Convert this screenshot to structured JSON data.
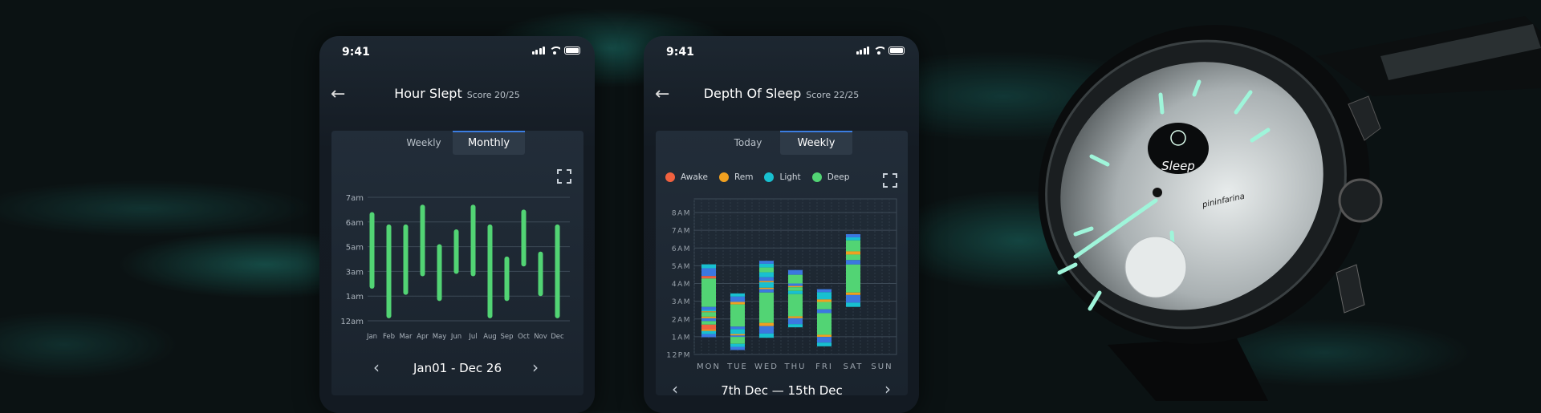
{
  "phones": [
    {
      "status_time": "9:41",
      "title": "Hour Slept",
      "score": "Score 20/25",
      "tabs": [
        "Weekly",
        "Monthly"
      ],
      "active_tab": "Monthly",
      "date_range": "Jan01 - Dec 26"
    },
    {
      "status_time": "9:41",
      "title": "Depth Of Sleep",
      "score": "Score 22/25",
      "tabs": [
        "Today",
        "Weekly"
      ],
      "active_tab": "Weekly",
      "date_range": "7th Dec — 15th Dec",
      "legend": [
        {
          "label": "Awake",
          "color": "#f0613f"
        },
        {
          "label": "Rem",
          "color": "#f0a020"
        },
        {
          "label": "Light",
          "color": "#18c0d0"
        },
        {
          "label": "Deep",
          "color": "#52d474"
        }
      ]
    }
  ],
  "watch": {
    "screen_text": "Sleep",
    "brand": "pininfarina",
    "icon": "sleeping-face-icon"
  },
  "chart_data": [
    {
      "type": "bar",
      "subtype": "floating-range",
      "bar_color": "#52d474",
      "categories": [
        "Jan",
        "Feb",
        "Mar",
        "Apr",
        "May",
        "Jun",
        "Jul",
        "Aug",
        "Sep",
        "Oct",
        "Nov",
        "Dec"
      ],
      "y_tick_labels": [
        "12am",
        "1am",
        "3am",
        "5am",
        "6am",
        "7am"
      ],
      "y_tick_hours": [
        0,
        1,
        3,
        5,
        6,
        7
      ],
      "series": [
        {
          "ranges": [
            [
              1.6,
              6.4
            ],
            [
              0.1,
              5.9
            ],
            [
              1.1,
              5.9
            ],
            [
              2.6,
              6.7
            ],
            [
              0.8,
              5.1
            ],
            [
              2.8,
              5.7
            ],
            [
              2.6,
              6.7
            ],
            [
              0.1,
              5.9
            ],
            [
              0.8,
              4.2
            ],
            [
              3.4,
              6.5
            ],
            [
              1.0,
              4.6
            ],
            [
              0.1,
              5.9
            ]
          ]
        }
      ],
      "grid": true
    },
    {
      "type": "bar",
      "subtype": "stacked-segments",
      "categories": [
        "MON",
        "TUE",
        "WED",
        "THU",
        "FRI",
        "SAT",
        "SUN"
      ],
      "y_tick_labels": [
        "12PM",
        "1AM",
        "2AM",
        "3AM",
        "4AM",
        "5AM",
        "6AM",
        "7AM",
        "8AM"
      ],
      "ylim": [
        0,
        8
      ],
      "colors": {
        "awake": "#f0613f",
        "rem": "#f0a020",
        "light": "#18c0d0",
        "deep": "#52d474",
        "blue": "#3b78e0"
      },
      "segments": [
        [
          [
            4.86,
            5.08,
            "light"
          ],
          [
            4.42,
            4.86,
            "blue"
          ],
          [
            4.28,
            4.42,
            "awake"
          ],
          [
            2.68,
            4.28,
            "deep"
          ],
          [
            2.51,
            2.68,
            "blue"
          ],
          [
            2.43,
            2.51,
            "light"
          ],
          [
            2.38,
            2.43,
            "rem"
          ],
          [
            2.13,
            2.38,
            "deep"
          ],
          [
            2.04,
            2.13,
            "rem"
          ],
          [
            1.88,
            2.04,
            "blue"
          ],
          [
            1.68,
            1.88,
            "deep"
          ],
          [
            1.4,
            1.68,
            "awake"
          ],
          [
            1.32,
            1.4,
            "rem"
          ],
          [
            1.15,
            1.32,
            "light"
          ],
          [
            0.97,
            1.15,
            "blue"
          ]
        ],
        [
          [
            3.26,
            3.44,
            "light"
          ],
          [
            2.96,
            3.26,
            "blue"
          ],
          [
            2.82,
            2.96,
            "rem"
          ],
          [
            1.57,
            2.82,
            "deep"
          ],
          [
            1.43,
            1.57,
            "blue"
          ],
          [
            1.15,
            1.43,
            "light"
          ],
          [
            1.07,
            1.15,
            "rem"
          ],
          [
            0.99,
            1.07,
            "blue"
          ],
          [
            0.6,
            0.99,
            "deep"
          ],
          [
            0.43,
            0.6,
            "light"
          ],
          [
            0.25,
            0.43,
            "blue"
          ]
        ],
        [
          [
            5.11,
            5.28,
            "blue"
          ],
          [
            4.9,
            5.11,
            "light"
          ],
          [
            4.63,
            4.9,
            "deep"
          ],
          [
            4.35,
            4.63,
            "light"
          ],
          [
            4.14,
            4.35,
            "blue"
          ],
          [
            4.07,
            4.14,
            "rem"
          ],
          [
            3.76,
            4.07,
            "light"
          ],
          [
            3.68,
            3.76,
            "rem"
          ],
          [
            3.49,
            3.68,
            "blue"
          ],
          [
            1.78,
            3.49,
            "deep"
          ],
          [
            1.6,
            1.78,
            "rem"
          ],
          [
            1.18,
            1.6,
            "blue"
          ],
          [
            0.94,
            1.18,
            "light"
          ]
        ],
        [
          [
            4.49,
            4.76,
            "blue"
          ],
          [
            4.0,
            4.49,
            "deep"
          ],
          [
            3.86,
            4.0,
            "blue"
          ],
          [
            3.79,
            3.86,
            "rem"
          ],
          [
            3.58,
            3.79,
            "deep"
          ],
          [
            3.4,
            3.58,
            "light"
          ],
          [
            2.15,
            3.4,
            "deep"
          ],
          [
            2.04,
            2.15,
            "rem"
          ],
          [
            1.71,
            2.04,
            "blue"
          ],
          [
            1.53,
            1.71,
            "light"
          ]
        ],
        [
          [
            3.51,
            3.68,
            "blue"
          ],
          [
            3.1,
            3.51,
            "light"
          ],
          [
            2.96,
            3.1,
            "rem"
          ],
          [
            2.54,
            2.96,
            "deep"
          ],
          [
            2.33,
            2.54,
            "blue"
          ],
          [
            1.11,
            2.33,
            "deep"
          ],
          [
            0.99,
            1.11,
            "rem"
          ],
          [
            0.67,
            0.99,
            "blue"
          ],
          [
            0.46,
            0.67,
            "light"
          ]
        ],
        [
          [
            6.6,
            6.78,
            "blue"
          ],
          [
            6.43,
            6.6,
            "light"
          ],
          [
            5.81,
            6.43,
            "deep"
          ],
          [
            5.63,
            5.81,
            "rem"
          ],
          [
            5.32,
            5.63,
            "deep"
          ],
          [
            5.07,
            5.32,
            "blue"
          ],
          [
            3.49,
            5.07,
            "deep"
          ],
          [
            3.35,
            3.49,
            "rem"
          ],
          [
            2.92,
            3.35,
            "blue"
          ],
          [
            2.68,
            2.92,
            "light"
          ]
        ],
        []
      ],
      "grid": true
    }
  ]
}
